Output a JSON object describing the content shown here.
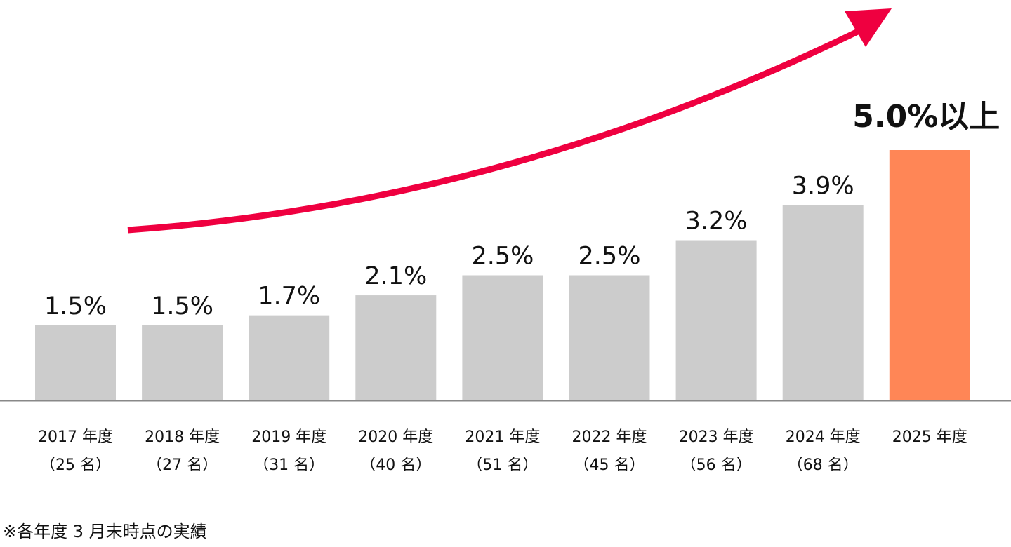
{
  "chart_data": {
    "type": "bar",
    "categories": [
      "2017 年度",
      "2018 年度",
      "2019 年度",
      "2020 年度",
      "2021 年度",
      "2022 年度",
      "2023 年度",
      "2024 年度",
      "2025 年度"
    ],
    "sublabels": [
      "（25 名）",
      "（27 名）",
      "（31 名）",
      "（40 名）",
      "（51 名）",
      "（45 名）",
      "（56 名）",
      "（68 名）",
      ""
    ],
    "values": [
      1.5,
      1.5,
      1.7,
      2.1,
      2.5,
      2.5,
      3.2,
      3.9,
      5.0
    ],
    "data_labels": [
      "1.5%",
      "1.5%",
      "1.7%",
      "2.1%",
      "2.5%",
      "2.5%",
      "3.2%",
      "3.9%",
      "5.0%以上"
    ],
    "ylim": [
      0,
      5.0
    ],
    "grid": false,
    "colors": {
      "actual": "#cccccc",
      "target": "#ff8656",
      "arrow": "#ef0040",
      "axis": "#888888"
    },
    "annotation": "upward-trend-arrow"
  },
  "footnote": "※各年度 3 月末時点の実績"
}
